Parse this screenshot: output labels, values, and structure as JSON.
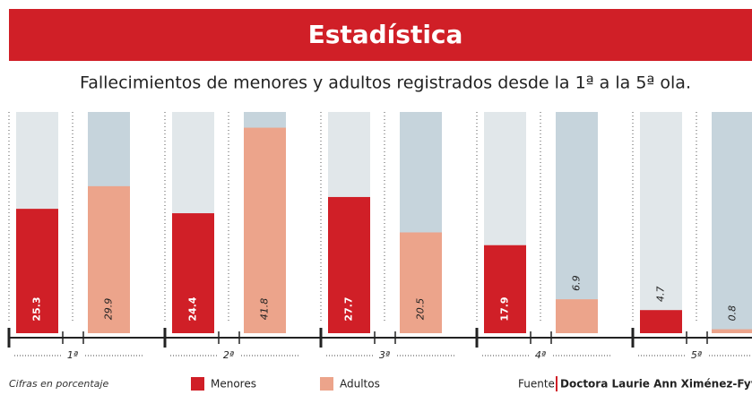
{
  "chart_data": {
    "type": "bar",
    "title": "Estadística",
    "subtitle": "Fallecimientos de menores y adultos registrados desde la 1ª a la 5ª ola.",
    "categories": [
      "1ª",
      "2ª",
      "3ª",
      "4ª",
      "5ª"
    ],
    "series": [
      {
        "name": "Menores",
        "color": "#d01f27",
        "background": "#e1e7ea",
        "values": [
          25.3,
          24.4,
          27.7,
          17.9,
          4.7
        ]
      },
      {
        "name": "Adultos",
        "color": "#eca48b",
        "background": "#c6d4dc",
        "values": [
          29.9,
          41.8,
          20.5,
          6.9,
          0.8
        ]
      }
    ],
    "ylim": [
      0,
      45
    ],
    "note": "Cifras en porcentaje",
    "source_label": "Fuente",
    "source": "Doctora Laurie Ann Ximénez-Fyvie"
  }
}
